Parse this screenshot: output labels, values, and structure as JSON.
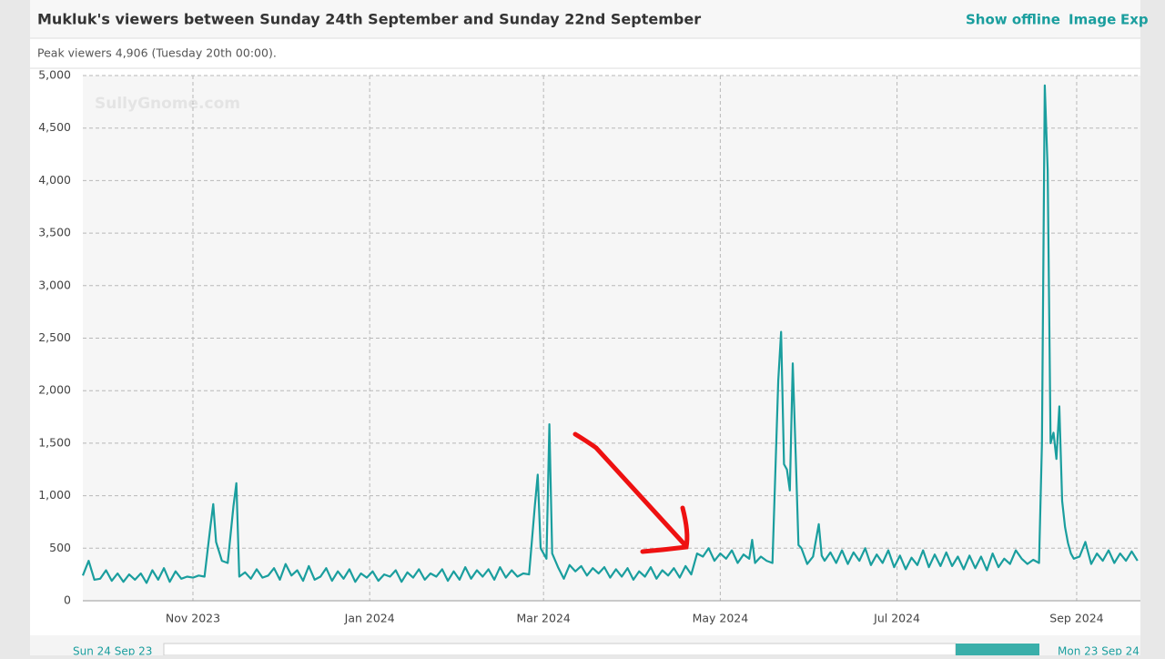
{
  "header": {
    "links": [
      "Show offline",
      "Image",
      "Exp"
    ]
  },
  "navigator": {
    "start": "Sun 24 Sep 23",
    "end": "Mon 23 Sep 24"
  },
  "chart_data": {
    "type": "line",
    "title": "Mukluk's viewers between Sunday 24th September and Sunday 22nd September",
    "subtitle": "Peak viewers 4,906 (Tuesday 20th 00:00).",
    "watermark": "SullyGnome.com",
    "x": [
      0,
      2,
      4,
      6,
      8,
      10,
      12,
      14,
      16,
      18,
      20,
      22,
      24,
      26,
      28,
      30,
      32,
      34,
      36,
      38,
      40,
      42,
      44,
      45,
      46,
      48,
      50,
      52,
      53,
      54,
      56,
      58,
      60,
      62,
      64,
      66,
      68,
      70,
      72,
      74,
      76,
      78,
      80,
      82,
      84,
      86,
      88,
      90,
      92,
      94,
      96,
      98,
      100,
      102,
      104,
      106,
      108,
      110,
      112,
      114,
      116,
      118,
      120,
      122,
      124,
      126,
      128,
      130,
      132,
      134,
      136,
      138,
      140,
      142,
      144,
      146,
      148,
      150,
      152,
      154,
      156,
      157,
      158,
      160,
      161,
      162,
      164,
      166,
      168,
      170,
      172,
      174,
      176,
      178,
      180,
      182,
      184,
      186,
      188,
      190,
      192,
      194,
      196,
      198,
      200,
      202,
      204,
      206,
      208,
      210,
      212,
      214,
      216,
      218,
      220,
      222,
      224,
      226,
      228,
      230,
      231,
      232,
      234,
      236,
      238,
      240,
      241,
      242,
      243,
      244,
      245,
      246,
      247,
      248,
      250,
      252,
      254,
      255,
      256,
      258,
      260,
      262,
      264,
      266,
      268,
      270,
      272,
      274,
      276,
      278,
      280,
      282,
      284,
      286,
      288,
      290,
      292,
      294,
      296,
      298,
      300,
      302,
      304,
      306,
      308,
      310,
      312,
      314,
      316,
      318,
      320,
      322,
      324,
      326,
      328,
      330,
      331,
      332,
      333,
      334,
      335,
      336,
      337,
      338,
      339,
      340,
      341,
      342,
      344,
      346,
      348,
      350,
      352,
      354,
      356,
      358,
      360,
      362,
      364
    ],
    "series": [
      {
        "name": "Viewers",
        "color": "#1a9e9e",
        "values": [
          240,
          380,
          200,
          210,
          290,
          190,
          260,
          180,
          250,
          200,
          260,
          170,
          290,
          200,
          310,
          180,
          280,
          210,
          230,
          220,
          240,
          230,
          700,
          920,
          560,
          380,
          360,
          900,
          1120,
          230,
          270,
          210,
          300,
          220,
          240,
          310,
          200,
          350,
          240,
          290,
          190,
          330,
          200,
          230,
          310,
          190,
          280,
          210,
          300,
          180,
          260,
          220,
          280,
          190,
          250,
          230,
          290,
          180,
          270,
          220,
          300,
          200,
          260,
          230,
          300,
          190,
          280,
          200,
          320,
          210,
          290,
          230,
          300,
          200,
          320,
          220,
          290,
          230,
          260,
          250,
          900,
          1200,
          500,
          400,
          1680,
          450,
          320,
          210,
          340,
          280,
          330,
          240,
          310,
          260,
          320,
          220,
          300,
          230,
          310,
          200,
          280,
          230,
          320,
          210,
          290,
          240,
          310,
          220,
          330,
          250,
          450,
          420,
          500,
          380,
          450,
          400,
          480,
          360,
          440,
          400,
          580,
          360,
          420,
          380,
          360,
          2100,
          2560,
          1300,
          1250,
          1050,
          2260,
          1400,
          530,
          500,
          350,
          420,
          730,
          430,
          380,
          460,
          360,
          480,
          350,
          460,
          380,
          500,
          340,
          440,
          360,
          480,
          320,
          430,
          300,
          410,
          340,
          480,
          320,
          440,
          330,
          460,
          330,
          420,
          300,
          430,
          310,
          420,
          290,
          450,
          320,
          400,
          350,
          480,
          400,
          350,
          390,
          360,
          1500,
          4906,
          4100,
          1500,
          1600,
          1350,
          1850,
          950,
          700,
          550,
          450,
          400,
          420,
          560,
          350,
          450,
          380,
          480,
          360,
          450,
          380,
          470,
          380
        ]
      }
    ],
    "xlim": [
      0,
      365
    ],
    "xticks": [
      {
        "value": 38,
        "label": "Nov 2023"
      },
      {
        "value": 99,
        "label": "Jan 2024"
      },
      {
        "value": 159,
        "label": "Mar 2024"
      },
      {
        "value": 220,
        "label": "May 2024"
      },
      {
        "value": 281,
        "label": "Jul 2024"
      },
      {
        "value": 343,
        "label": "Sep 2024"
      }
    ],
    "ylim": [
      0,
      5000
    ],
    "yticks": [
      0,
      500,
      {
        "value": 1000,
        "label": "1,000"
      },
      {
        "value": 1500,
        "label": "1,500"
      },
      {
        "value": 2000,
        "label": "2,000"
      },
      {
        "value": 2500,
        "label": "2,500"
      },
      {
        "value": 3000,
        "label": "3,000"
      },
      {
        "value": 3500,
        "label": "3,500"
      },
      {
        "value": 4000,
        "label": "4,000"
      },
      {
        "value": 4500,
        "label": "4,500"
      },
      {
        "value": 5000,
        "label": "5,000"
      }
    ],
    "grid": true
  }
}
